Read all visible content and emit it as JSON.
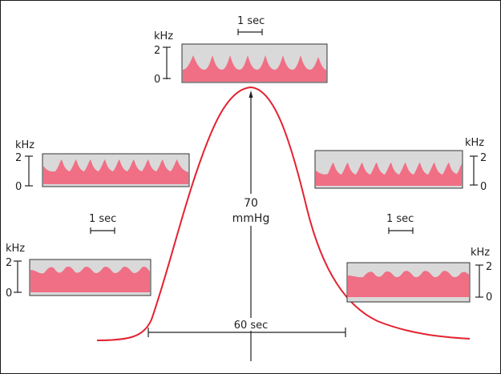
{
  "colors": {
    "curve": "#e32230",
    "spectral_fill": "#f06f85",
    "panel_background": "#d9d9d9",
    "panel_border": "#333333",
    "line": "#222222"
  },
  "pressure": {
    "value": "70",
    "unit": "mmHg"
  },
  "time_scale": {
    "long": "60 sec",
    "short": "1 sec"
  },
  "spectra": [
    {
      "id": "top-center",
      "freq_unit": "kHz",
      "tick_max": "2",
      "tick_min": "0",
      "peak_shape": "sharp-peaks",
      "time_scale": "1 sec"
    },
    {
      "id": "left-upper",
      "freq_unit": "kHz",
      "tick_max": "2",
      "tick_min": "0",
      "peak_shape": "moderate-peaks"
    },
    {
      "id": "left-lower",
      "freq_unit": "kHz",
      "tick_max": "2",
      "tick_min": "0",
      "peak_shape": "low-waves",
      "time_scale": "1 sec"
    },
    {
      "id": "right-upper",
      "freq_unit": "kHz",
      "tick_max": "2",
      "tick_min": "0",
      "peak_shape": "moderate-peaks"
    },
    {
      "id": "right-lower",
      "freq_unit": "kHz",
      "tick_max": "2",
      "tick_min": "0",
      "peak_shape": "low-waves",
      "time_scale": "1 sec"
    }
  ]
}
